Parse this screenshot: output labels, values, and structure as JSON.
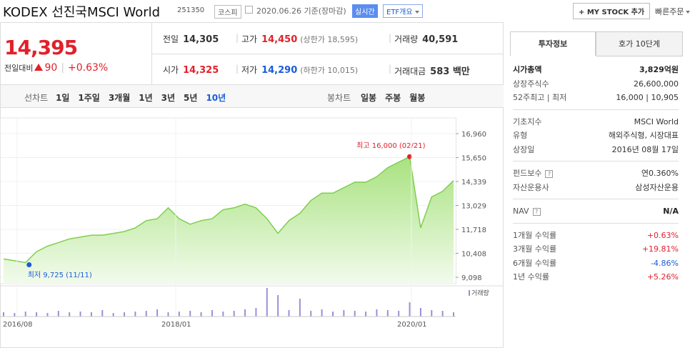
{
  "header": {
    "title": "KODEX 선진국MSCI World",
    "code": "251350",
    "market": "코스피",
    "date": "2020.06.26 기준(장마감)",
    "realtime": "실시간",
    "etf": "ETF개요",
    "mystock": "+ MY STOCK 추가",
    "quick": "빠른주문"
  },
  "price": {
    "current": "14,395",
    "change_label": "전일대비",
    "change": "90",
    "rate": "+0.63%"
  },
  "summary": {
    "rows": [
      [
        {
          "label": "전일",
          "value": "14,305"
        },
        {
          "label": "고가",
          "value": "14,450",
          "note": "(상한가 18,595)"
        },
        {
          "label": "거래량",
          "value": "40,591"
        }
      ],
      [
        {
          "label": "시가",
          "value": "14,325"
        },
        {
          "label": "저가",
          "value": "14,290",
          "note": "(하한가 10,015)"
        },
        {
          "label": "거래대금",
          "value": "583 백만"
        }
      ]
    ]
  },
  "tabs": {
    "line": "선차트",
    "periods": [
      "1일",
      "1주일",
      "3개월",
      "1년",
      "3년",
      "5년",
      "10년"
    ],
    "candle": "봉차트",
    "candle_periods": [
      "일봉",
      "주봉",
      "월봉"
    ]
  },
  "chart": {
    "type": "area",
    "values": [
      10100,
      10000,
      9900,
      10500,
      10800,
      11000,
      11200,
      11300,
      11400,
      11400,
      11500,
      11600,
      11800,
      12200,
      12300,
      12900,
      12300,
      12000,
      12200,
      12300,
      12800,
      12900,
      13100,
      12900,
      12300,
      11500,
      12200,
      12600,
      13300,
      13700,
      13700,
      14000,
      14300,
      14300,
      14600,
      15100,
      15400,
      15700,
      11800,
      13500,
      13800,
      14395
    ],
    "volume": [
      6,
      5,
      7,
      6,
      5,
      8,
      6,
      7,
      6,
      9,
      5,
      6,
      7,
      8,
      10,
      6,
      7,
      8,
      6,
      9,
      7,
      8,
      10,
      12,
      40,
      30,
      9,
      25,
      8,
      10,
      7,
      9,
      8,
      7,
      10,
      9,
      8,
      20,
      12,
      9,
      8,
      6
    ],
    "ylim": [
      9098,
      16960
    ],
    "yticks": [
      {
        "value": 16960,
        "label": "16,960"
      },
      {
        "value": 15650,
        "label": "15,650"
      },
      {
        "value": 14339,
        "label": "14,339"
      },
      {
        "value": 13029,
        "label": "13,029"
      },
      {
        "value": 11718,
        "label": "11,718"
      },
      {
        "value": 10408,
        "label": "10,408"
      },
      {
        "value": 9098,
        "label": "9,098"
      }
    ],
    "xlabels": [
      "2016/08",
      "2018/01",
      "2020/01"
    ],
    "high_label": "최고 16,000 (02/21)",
    "low_label": "최저 9,725 (11/11)",
    "volume_label": "거래량",
    "color": "#7fce4f"
  },
  "info": {
    "tabs": [
      "투자정보",
      "호가 10단계"
    ],
    "groups": [
      [
        {
          "label": "시가총액",
          "value": "3,829억원"
        },
        {
          "label": "상장주식수",
          "value": "26,600,000"
        },
        {
          "label": "52주최고 | 최저",
          "value": "16,000 | 10,905"
        }
      ],
      [
        {
          "label": "기초지수",
          "value": "MSCI World"
        },
        {
          "label": "유형",
          "value": "해외주식형, 시장대표"
        },
        {
          "label": "상장일",
          "value": "2016년 08월 17일"
        }
      ],
      [
        {
          "label": "펀드보수",
          "value": "연0.360%"
        },
        {
          "label": "자산운용사",
          "value": "삼성자산운용"
        }
      ],
      [
        {
          "label": "NAV",
          "value": "N/A"
        }
      ],
      [
        {
          "label": "1개월 수익률",
          "value": "+0.63%"
        },
        {
          "label": "3개월 수익률",
          "value": "+19.81%"
        },
        {
          "label": "6개월 수익률",
          "value": "-4.86%"
        },
        {
          "label": "1년 수익률",
          "value": "+5.26%"
        }
      ]
    ]
  }
}
